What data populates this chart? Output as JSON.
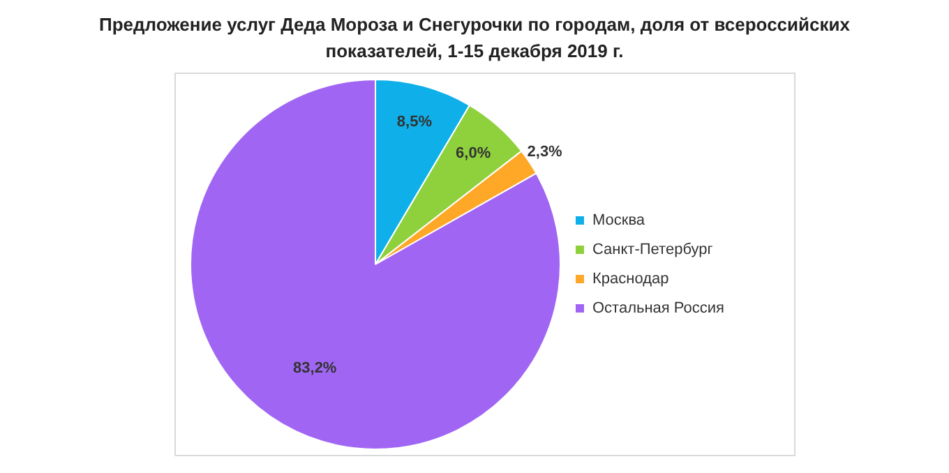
{
  "chart_data": {
    "type": "pie",
    "title": "Предложение услуг Деда Мороза и Снегурочки по городам, доля от всероссийских показателей, 1-15 декабря 2019 г.",
    "categories": [
      "Москва",
      "Санкт-Петербург",
      "Краснодар",
      "Остальная Россия"
    ],
    "values": [
      8.5,
      6.0,
      2.3,
      83.2
    ],
    "colors": [
      "#0fb0ea",
      "#8ed13c",
      "#ffa726",
      "#a066f3"
    ],
    "value_labels": [
      "8,5%",
      "6,0%",
      "2,3%",
      "83,2%"
    ],
    "legend": "right"
  }
}
